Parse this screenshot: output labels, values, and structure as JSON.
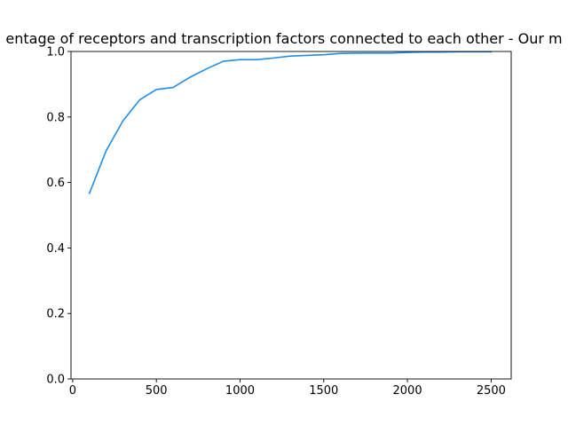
{
  "chart_data": {
    "type": "line",
    "title": "Percentage of receptors and transcription factors connected to each other - Our method",
    "title_visible": "entage of receptors and transcription factors connected to each other - Our m",
    "xlabel": "",
    "ylabel": "",
    "xlim": [
      -10,
      2620
    ],
    "ylim": [
      0.0,
      1.0
    ],
    "x_ticks": [
      0,
      500,
      1000,
      1500,
      2000,
      2500
    ],
    "y_ticks": [
      0.0,
      0.2,
      0.4,
      0.6,
      0.8,
      1.0
    ],
    "x_tick_labels": [
      "0",
      "500",
      "1000",
      "1500",
      "2000",
      "2500"
    ],
    "y_tick_labels": [
      "0.0",
      "0.2",
      "0.4",
      "0.6",
      "0.8",
      "1.0"
    ],
    "grid": false,
    "series": [
      {
        "color": "#1f8ee8",
        "x": [
          100,
          200,
          300,
          400,
          500,
          600,
          700,
          800,
          900,
          1000,
          1100,
          1200,
          1300,
          1400,
          1500,
          1600,
          1700,
          1800,
          1900,
          2000,
          2100,
          2200,
          2300,
          2400,
          2500
        ],
        "y": [
          0.567,
          0.697,
          0.788,
          0.852,
          0.884,
          0.89,
          0.921,
          0.947,
          0.97,
          0.975,
          0.975,
          0.98,
          0.986,
          0.988,
          0.99,
          0.994,
          0.995,
          0.995,
          0.995,
          0.997,
          0.998,
          0.998,
          0.999,
          0.999,
          0.999
        ]
      }
    ]
  }
}
